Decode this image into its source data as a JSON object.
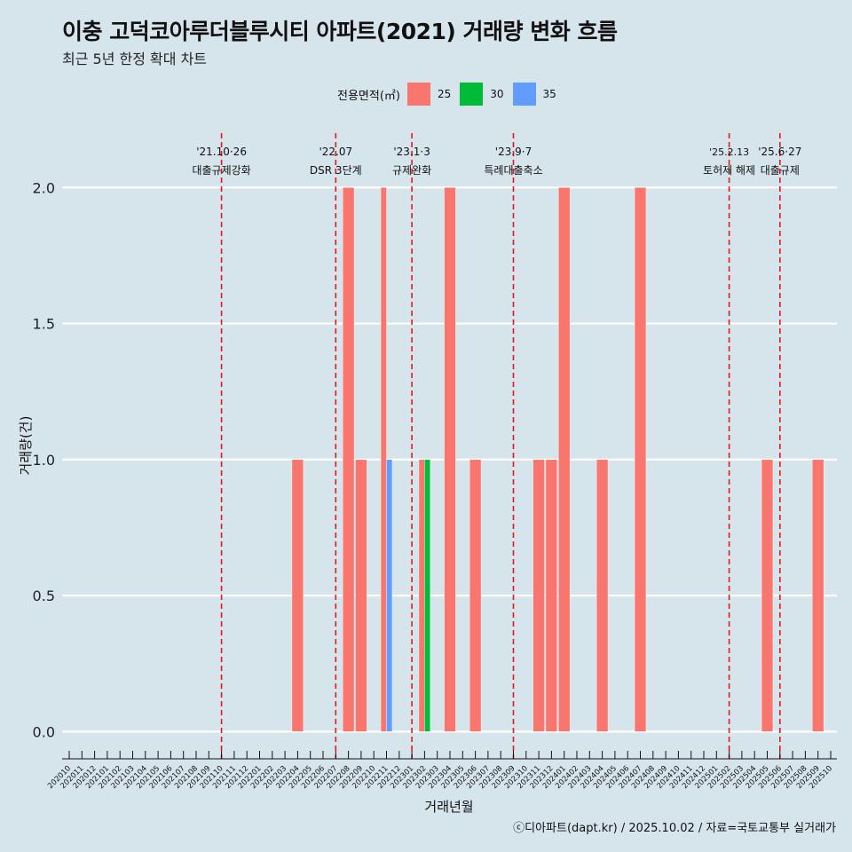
{
  "chart_data": {
    "type": "bar",
    "title": "이충 고덕코아루더블루시티 아파트(2021) 거래량 변화 흐름",
    "subtitle": "최근 5년 한정 확대 차트",
    "xlabel": "거래년월",
    "ylabel": "거래량(건)",
    "ylim": [
      -0.1,
      2.2
    ],
    "yticks": [
      "0.0",
      "0.5",
      "1.0",
      "1.5",
      "2.0"
    ],
    "ytick_values": [
      0,
      0.5,
      1.0,
      1.5,
      2.0
    ],
    "legend_title": "전용면적(㎡)",
    "legend_position": "top",
    "series_colors": {
      "25": "#f8766d",
      "30": "#00ba38",
      "35": "#619cff"
    },
    "categories": [
      "202010",
      "202011",
      "202012",
      "202101",
      "202102",
      "202103",
      "202104",
      "202105",
      "202106",
      "202107",
      "202108",
      "202109",
      "202110",
      "202111",
      "202112",
      "202201",
      "202202",
      "202203",
      "202204",
      "202205",
      "202206",
      "202207",
      "202208",
      "202209",
      "202210",
      "202211",
      "202212",
      "202301",
      "202302",
      "202303",
      "202304",
      "202305",
      "202306",
      "202307",
      "202308",
      "202309",
      "202310",
      "202311",
      "202312",
      "202401",
      "202402",
      "202403",
      "202404",
      "202405",
      "202406",
      "202407",
      "202408",
      "202409",
      "202410",
      "202411",
      "202412",
      "202501",
      "202502",
      "202503",
      "202504",
      "202505",
      "202506",
      "202507",
      "202508",
      "202509",
      "202510"
    ],
    "series": [
      {
        "name": "25",
        "values": {
          "202204": 1,
          "202208": 2,
          "202209": 1,
          "202211": 2,
          "202302": 1,
          "202304": 2,
          "202306": 1,
          "202311": 1,
          "202312": 1,
          "202401": 2,
          "202404": 1,
          "202407": 2,
          "202505": 1,
          "202509": 1
        }
      },
      {
        "name": "30",
        "values": {
          "202302": 1
        }
      },
      {
        "name": "35",
        "values": {
          "202211": 1
        }
      }
    ],
    "annotations": [
      {
        "at": "202110",
        "date": "'21.10·26",
        "label": "대출규제강화"
      },
      {
        "at": "202207",
        "date": "'22.07",
        "label": "DSR 3단계"
      },
      {
        "at": "202301",
        "date": "'23.1·3",
        "label": "규제완화"
      },
      {
        "at": "202309",
        "date": "'23.9·7",
        "label": "특례대출축소"
      },
      {
        "at": "202502",
        "date": "'25.2.13",
        "label": "토허제 해제"
      },
      {
        "at": "202506",
        "date": "'25.6·27",
        "label": "대출규제"
      }
    ]
  },
  "footer": "ⓒ디아파트(dapt.kr) / 2025.10.02 / 자료=국토교통부 실거래가"
}
